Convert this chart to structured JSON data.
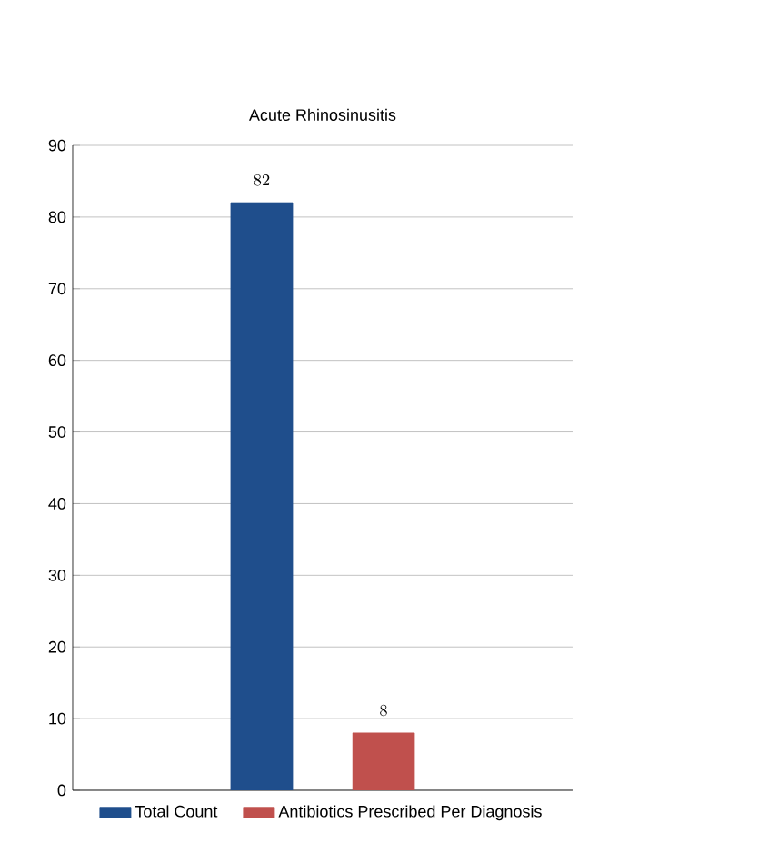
{
  "chart_data": {
    "type": "bar",
    "title": "Acute Rhinosinusitis",
    "categories": [
      null
    ],
    "series": [
      {
        "name": "Total Count",
        "color": "#1f4e8c",
        "values": [
          82
        ]
      },
      {
        "name": "Antibiotics Prescribed Per Diagnosis",
        "color": "#c0504d",
        "values": [
          8
        ]
      }
    ],
    "ylim": [
      0,
      90
    ],
    "yticks": [
      0,
      10,
      20,
      30,
      40,
      50,
      60,
      70,
      80,
      90
    ],
    "grid": "y",
    "legend": "bottom",
    "data_labels": true
  }
}
